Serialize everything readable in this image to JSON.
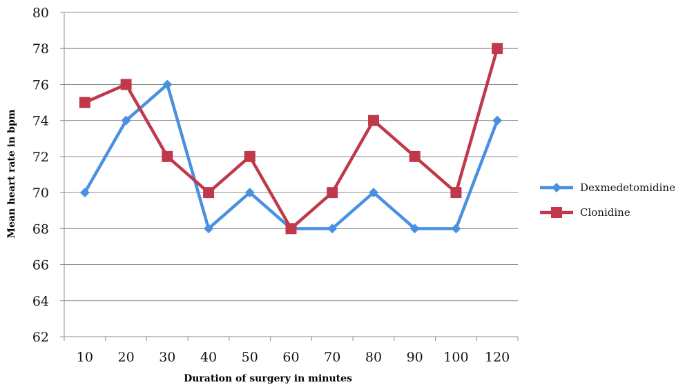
{
  "chart_data": {
    "type": "line",
    "title": "",
    "xlabel": "Duration of surgery in minutes",
    "ylabel": "Mean heart rate in bpm",
    "categories": [
      "10",
      "20",
      "30",
      "40",
      "50",
      "60",
      "70",
      "80",
      "90",
      "100",
      "120"
    ],
    "ylim": [
      62,
      80
    ],
    "yticks": [
      "62",
      "64",
      "66",
      "68",
      "70",
      "72",
      "74",
      "76",
      "78",
      "80"
    ],
    "grid": "horizontal",
    "legend_position": "right",
    "series": [
      {
        "name": "Dexmedetomidine",
        "color": "#4A90E2",
        "marker": "diamond",
        "values": [
          70,
          74,
          76,
          68,
          70,
          68,
          68,
          70,
          68,
          68,
          74
        ]
      },
      {
        "name": "Clonidine",
        "color": "#C0394B",
        "marker": "square",
        "values": [
          75,
          76,
          72,
          70,
          72,
          68,
          70,
          74,
          72,
          70,
          78
        ]
      }
    ]
  }
}
